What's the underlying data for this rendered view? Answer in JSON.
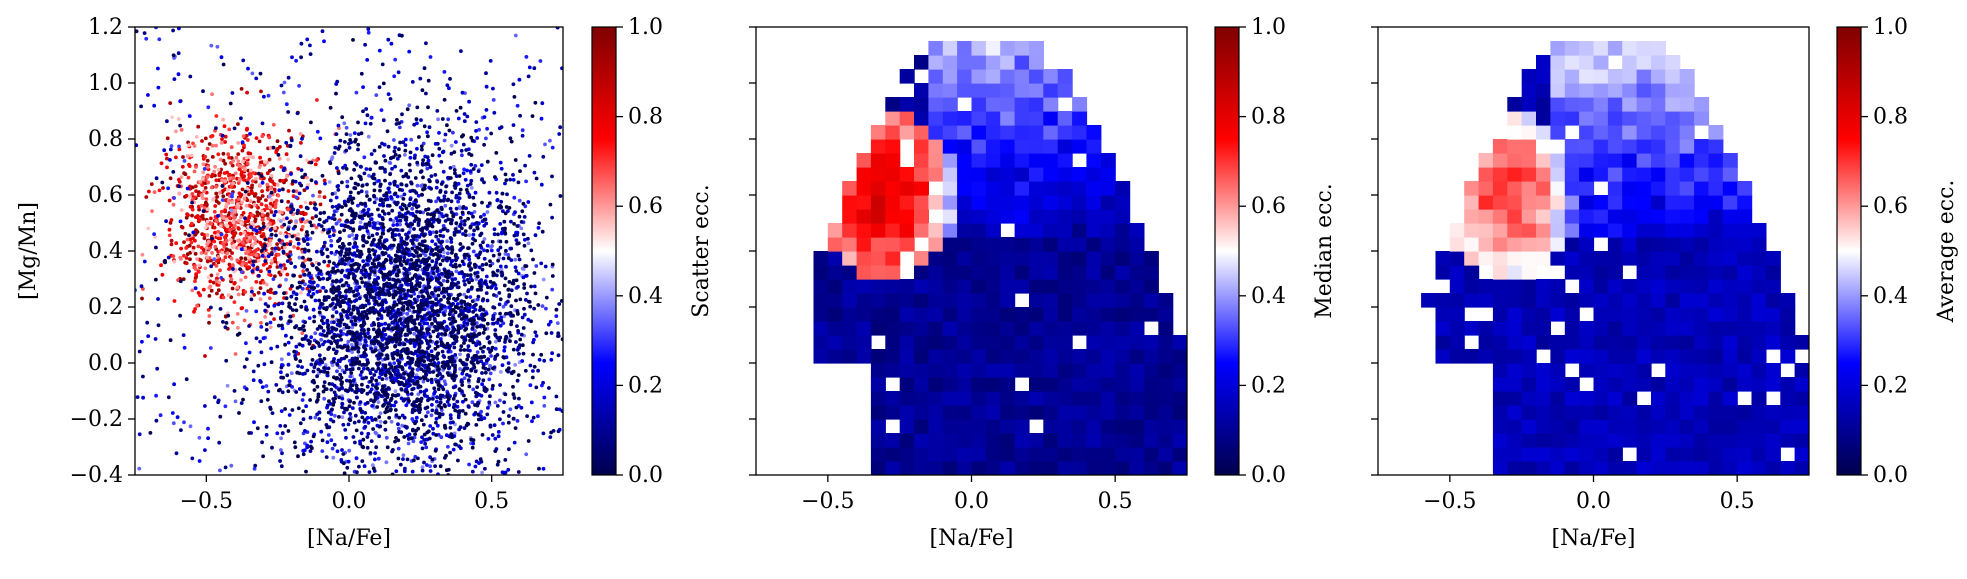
{
  "figure": {
    "colormap": [
      "#00004c",
      "#0000ff",
      "#ffffff",
      "#ff0000",
      "#7f0000"
    ],
    "panel_styles": [
      "scatter",
      "histogram",
      "histogram"
    ]
  },
  "chart_data": [
    {
      "type": "scatter",
      "title": "",
      "xlabel": "[Na/Fe]",
      "ylabel": "[Mg/Mn]",
      "xlim": [
        -0.75,
        0.75
      ],
      "ylim": [
        -0.4,
        1.2
      ],
      "xticks": [
        "−0.5",
        "0.0",
        "0.5"
      ],
      "yticks": [
        "−0.4",
        "−0.2",
        "0.0",
        "0.2",
        "0.4",
        "0.6",
        "0.8",
        "1.0",
        "1.2"
      ],
      "colorbar": {
        "label": "Scatter ecc.",
        "range": [
          0.0,
          1.0
        ],
        "ticks": [
          "0.0",
          "0.2",
          "0.4",
          "0.6",
          "0.8",
          "1.0"
        ]
      },
      "populations": [
        {
          "component": "low-eccentricity",
          "x_center": 0.2,
          "x_spread": 0.22,
          "y_center": 0.2,
          "y_spread": 0.3,
          "ecc_range": [
            0.0,
            0.4
          ]
        },
        {
          "component": "high-eccentricity",
          "x_center": -0.38,
          "x_spread": 0.13,
          "y_center": 0.52,
          "y_spread": 0.16,
          "ecc_range": [
            0.55,
            1.0
          ]
        }
      ]
    },
    {
      "type": "heatmap",
      "title": "",
      "xlabel": "[Na/Fe]",
      "ylabel": "",
      "xlim": [
        -0.75,
        0.75
      ],
      "ylim": [
        -0.4,
        1.2
      ],
      "xticks": [
        "−0.5",
        "0.0",
        "0.5"
      ],
      "bin_size": [
        0.05,
        0.05
      ],
      "colorbar": {
        "label": "Median ecc.",
        "range": [
          0.0,
          1.0
        ],
        "ticks": [
          "0.0",
          "0.2",
          "0.4",
          "0.6",
          "0.8",
          "1.0"
        ]
      },
      "high_ecc_region": {
        "x_range": [
          -0.55,
          -0.05
        ],
        "y_range": [
          0.3,
          0.9
        ],
        "value": 0.85
      },
      "low_ecc_value": 0.1
    },
    {
      "type": "heatmap",
      "title": "",
      "xlabel": "[Na/Fe]",
      "ylabel": "",
      "xlim": [
        -0.75,
        0.75
      ],
      "ylim": [
        -0.4,
        1.2
      ],
      "xticks": [
        "−0.5",
        "0.0",
        "0.5"
      ],
      "bin_size": [
        0.05,
        0.05
      ],
      "colorbar": {
        "label": "Average ecc.",
        "range": [
          0.0,
          1.0
        ],
        "ticks": [
          "0.0",
          "0.2",
          "0.4",
          "0.6",
          "0.8",
          "1.0"
        ]
      },
      "high_ecc_region": {
        "x_range": [
          -0.55,
          -0.05
        ],
        "y_range": [
          0.3,
          0.9
        ],
        "value": 0.75
      },
      "low_ecc_value": 0.15
    }
  ]
}
